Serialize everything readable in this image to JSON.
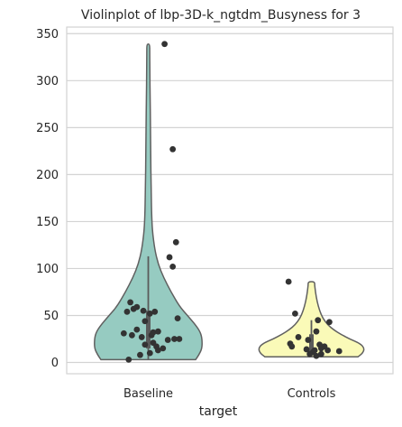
{
  "chart_data": {
    "type": "violin",
    "title": "Violinplot of lbp-3D-k_ngtdm_Busyness for 3",
    "xlabel": "target",
    "ylabel": "",
    "ylim": [
      -12,
      357
    ],
    "yticks": [
      0,
      50,
      100,
      150,
      200,
      250,
      300,
      350
    ],
    "grid": true,
    "categories": [
      "Baseline",
      "Controls"
    ],
    "colors": {
      "Baseline": "#96cbc1",
      "Controls": "#fafab8",
      "outline": "#606060",
      "points": "#333333",
      "grid": "#d3d3d3"
    },
    "violin_profile": {
      "Baseline": [
        [
          3,
          0.58
        ],
        [
          8,
          0.62
        ],
        [
          15,
          0.66
        ],
        [
          25,
          0.66
        ],
        [
          32,
          0.64
        ],
        [
          40,
          0.58
        ],
        [
          50,
          0.48
        ],
        [
          60,
          0.38
        ],
        [
          75,
          0.28
        ],
        [
          90,
          0.19
        ],
        [
          105,
          0.12
        ],
        [
          120,
          0.08
        ],
        [
          140,
          0.05
        ],
        [
          160,
          0.04
        ],
        [
          190,
          0.035
        ],
        [
          220,
          0.03
        ],
        [
          250,
          0.027
        ],
        [
          280,
          0.023
        ],
        [
          310,
          0.02
        ],
        [
          330,
          0.018
        ],
        [
          339,
          0.018
        ]
      ],
      "Controls": [
        [
          6,
          0.57
        ],
        [
          10,
          0.63
        ],
        [
          15,
          0.65
        ],
        [
          20,
          0.6
        ],
        [
          25,
          0.47
        ],
        [
          30,
          0.36
        ],
        [
          35,
          0.27
        ],
        [
          40,
          0.2
        ],
        [
          47,
          0.14
        ],
        [
          55,
          0.1
        ],
        [
          65,
          0.07
        ],
        [
          75,
          0.05
        ],
        [
          82,
          0.04
        ],
        [
          86,
          0.04
        ]
      ]
    },
    "box": {
      "Baseline": {
        "q1": 15,
        "median": 32,
        "q3": 55,
        "whisker_low": 3,
        "whisker_high": 113
      },
      "Controls": {
        "q1": 12,
        "median": 18,
        "q3": 30,
        "whisker_low": 6,
        "whisker_high": 45
      }
    },
    "points": {
      "Baseline": [
        [
          -0.12,
          3
        ],
        [
          -0.05,
          8
        ],
        [
          0.01,
          10
        ],
        [
          0.06,
          13
        ],
        [
          0.09,
          15
        ],
        [
          0.05,
          17
        ],
        [
          -0.02,
          19
        ],
        [
          0.03,
          21
        ],
        [
          0.12,
          24
        ],
        [
          0.16,
          25
        ],
        [
          0.19,
          25
        ],
        [
          -0.04,
          27
        ],
        [
          0.02,
          29
        ],
        [
          -0.1,
          29
        ],
        [
          -0.15,
          31
        ],
        [
          0.03,
          32
        ],
        [
          0.06,
          33
        ],
        [
          -0.07,
          35
        ],
        [
          -0.02,
          44
        ],
        [
          0.18,
          47
        ],
        [
          0.01,
          52
        ],
        [
          -0.13,
          54
        ],
        [
          0.04,
          54
        ],
        [
          -0.03,
          55
        ],
        [
          -0.09,
          57
        ],
        [
          -0.07,
          59
        ],
        [
          -0.11,
          64
        ],
        [
          0.15,
          102
        ],
        [
          0.13,
          112
        ],
        [
          0.17,
          128
        ],
        [
          0.15,
          227
        ],
        [
          0.1,
          339
        ]
      ],
      "Controls": [
        [
          -0.14,
          86
        ],
        [
          0.11,
          43
        ],
        [
          0.04,
          45
        ],
        [
          -0.1,
          52
        ],
        [
          0.03,
          33
        ],
        [
          -0.08,
          27
        ],
        [
          -0.02,
          24
        ],
        [
          -0.13,
          20
        ],
        [
          -0.12,
          17
        ],
        [
          0.05,
          19
        ],
        [
          0.08,
          17
        ],
        [
          0.06,
          15
        ],
        [
          -0.03,
          14
        ],
        [
          0.02,
          13
        ],
        [
          0.1,
          13
        ],
        [
          0.17,
          12
        ],
        [
          0.01,
          11
        ],
        [
          -0.01,
          9
        ],
        [
          0.06,
          9
        ],
        [
          0.03,
          7
        ]
      ]
    }
  }
}
